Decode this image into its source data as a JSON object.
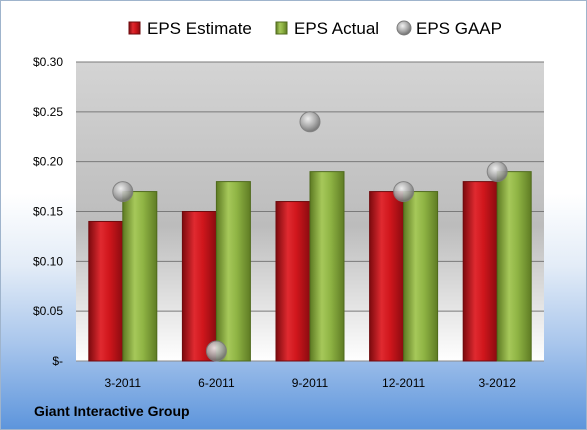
{
  "footer": {
    "company": "Giant Interactive Group"
  },
  "colors": {
    "estimate": "#c0151b",
    "actual": "#8cb040",
    "gaap": "#b4b4b4"
  },
  "chart_data": {
    "type": "bar",
    "title": "",
    "xlabel": "",
    "ylabel": "",
    "categories": [
      "3-2011",
      "6-2011",
      "9-2011",
      "12-2011",
      "3-2012"
    ],
    "series": [
      {
        "name": "EPS Estimate",
        "kind": "bar",
        "values": [
          0.14,
          0.15,
          0.16,
          0.17,
          0.18
        ]
      },
      {
        "name": "EPS Actual",
        "kind": "bar",
        "values": [
          0.17,
          0.18,
          0.19,
          0.17,
          0.19
        ]
      },
      {
        "name": "EPS GAAP",
        "kind": "scatter",
        "values": [
          0.17,
          0.01,
          0.24,
          0.17,
          0.19
        ]
      }
    ],
    "ylim": [
      0,
      0.3
    ],
    "yticks": [
      0,
      0.05,
      0.1,
      0.15,
      0.2,
      0.25,
      0.3
    ],
    "ytick_labels": [
      "$-",
      "$0.05",
      "$0.10",
      "$0.15",
      "$0.20",
      "$0.25",
      "$0.30"
    ],
    "grid": true,
    "legend": "top"
  }
}
